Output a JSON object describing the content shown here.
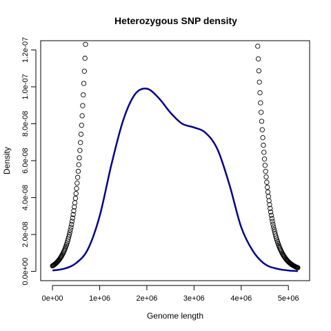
{
  "chart_data": {
    "type": "line",
    "title": "Heterozygous SNP density",
    "xlabel": "Genome length",
    "ylabel": "Density",
    "xlim": [
      -250000,
      5450000
    ],
    "ylim": [
      -5e-09,
      1.25e-07
    ],
    "x_ticks": [
      0,
      1000000,
      2000000,
      3000000,
      4000000,
      5000000
    ],
    "x_tick_labels": [
      "0e+00",
      "1e+06",
      "2e+06",
      "3e+06",
      "4e+06",
      "5e+06"
    ],
    "y_ticks": [
      0,
      2e-08,
      4e-08,
      6e-08,
      8e-08,
      1e-07,
      1.2e-07
    ],
    "y_tick_labels": [
      "0.0e+00",
      "2.0e-08",
      "4.0e-08",
      "6.0e-08",
      "8.0e-08",
      "1.0e-07",
      "1.2e-07"
    ],
    "grid": false,
    "series": [
      {
        "style": "line",
        "color": "#00008B",
        "x": [
          0,
          250000,
          500000,
          750000,
          1000000,
          1250000,
          1500000,
          1750000,
          2000000,
          2250000,
          2500000,
          2750000,
          3000000,
          3250000,
          3500000,
          3750000,
          4000000,
          4250000,
          4500000,
          4750000,
          5000000,
          5200000
        ],
        "y": [
          5e-10,
          1.5e-09,
          4.5e-09,
          1.2e-08,
          3e-08,
          5.8e-08,
          8.2e-08,
          9.6e-08,
          9.9e-08,
          9.4e-08,
          8.6e-08,
          8e-08,
          7.8e-08,
          7.5e-08,
          6.6e-08,
          4.7e-08,
          2.4e-08,
          1.1e-08,
          4e-09,
          1.5e-09,
          5e-10,
          2e-10
        ]
      },
      {
        "style": "points",
        "color": "#000000",
        "segments": [
          {
            "x_start": 0,
            "x_end": 700000,
            "n": 60,
            "y_at_start": 3e-09,
            "y_at_end": 1.23e-07,
            "shape": "exp"
          },
          {
            "x_start": 4350000,
            "x_end": 5200000,
            "n": 72,
            "y_at_start": 1.22e-07,
            "y_at_end": 2e-09,
            "shape": "exp"
          }
        ]
      }
    ]
  }
}
